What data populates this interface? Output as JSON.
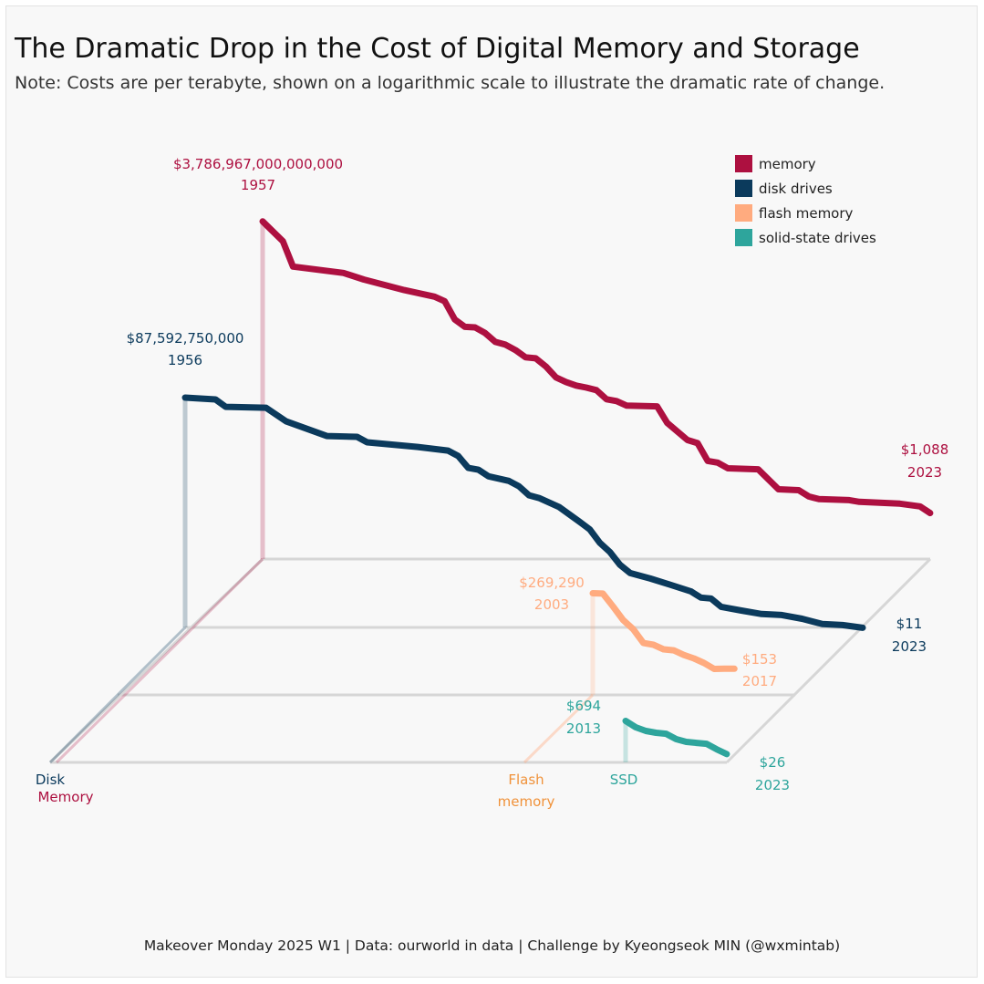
{
  "title": "The Dramatic Drop in the Cost of Digital Memory and Storage",
  "subtitle": "Note: Costs are per terabyte, shown on a logarithmic scale to illustrate the dramatic rate of change.",
  "footer": "Makeover Monday 2025 W1 | Data: ourworld in data | Challenge by Kyeongseok MIN (@wxmintab)",
  "chart_data": {
    "type": "line",
    "title": "The Dramatic Drop in the Cost of Digital Memory and Storage",
    "subtitle": "Note: Costs are per terabyte, shown on a logarithmic scale to illustrate the dramatic rate of change.",
    "yscale": "log",
    "layout": "pseudo-3D stacked planes, one per series",
    "grid": false,
    "legend_position": "top-right",
    "legend": [
      "memory",
      "disk drives",
      "flash memory",
      "solid-state drives"
    ],
    "series": [
      {
        "name": "memory",
        "plane_label": [
          "",
          "Memory"
        ],
        "color": "#ad1040",
        "start_label": {
          "value": "$3,786,967,000,000,000",
          "year": "1957"
        },
        "end_label": {
          "value": "$1,088",
          "year": "2023"
        },
        "points": [
          [
            1957,
            3787000000000000.0
          ],
          [
            1959,
            530000000000000.0
          ],
          [
            1960,
            43000000000000.0
          ],
          [
            1965,
            23000000000000.0
          ],
          [
            1967,
            12000000000000.0
          ],
          [
            1971,
            4200000000000.0
          ],
          [
            1974,
            2200000000000.0
          ],
          [
            1975,
            1400000000000.0
          ],
          [
            1976,
            230000000000.0
          ],
          [
            1977,
            110000000000.0
          ],
          [
            1978,
            105000000000.0
          ],
          [
            1979,
            60000000000.0
          ],
          [
            1980,
            25000000000.0
          ],
          [
            1981,
            19000000000.0
          ],
          [
            1982,
            11000000000.0
          ],
          [
            1983,
            5400000000.0
          ],
          [
            1984,
            4900000000.0
          ],
          [
            1985,
            2200000000.0
          ],
          [
            1986,
            740000000.0
          ],
          [
            1987,
            470000000.0
          ],
          [
            1988,
            330000000.0
          ],
          [
            1989,
            270000000.0
          ],
          [
            1990,
            210000000.0
          ],
          [
            1991,
            85000000.0
          ],
          [
            1992,
            71000000.0
          ],
          [
            1993,
            45000000.0
          ],
          [
            1996,
            42000000.0
          ],
          [
            1997,
            8200000.0
          ],
          [
            1999,
            1500000.0
          ],
          [
            2000,
            1100000.0
          ],
          [
            2001,
            190000.0
          ],
          [
            2002,
            160000.0
          ],
          [
            2003,
            91000.0
          ],
          [
            2006,
            83000.0
          ],
          [
            2008,
            11500.0
          ],
          [
            2010,
            10500.0
          ],
          [
            2011,
            5600
          ],
          [
            2012,
            4300
          ],
          [
            2015,
            3900
          ],
          [
            2016,
            3300
          ],
          [
            2020,
            2750
          ],
          [
            2022,
            2100
          ],
          [
            2023,
            1088
          ]
        ]
      },
      {
        "name": "disk drives",
        "plane_label": [
          "Disk",
          ""
        ],
        "color": "#0b3a5c",
        "start_label": {
          "value": "$87,592,750,000",
          "year": "1956"
        },
        "end_label": {
          "value": "$11",
          "year": "2023"
        },
        "points": [
          [
            1956,
            87592750000.0
          ],
          [
            1959,
            73000000000.0
          ],
          [
            1960,
            35000000000.0
          ],
          [
            1964,
            32000000000.0
          ],
          [
            1966,
            8300000000.0
          ],
          [
            1970,
            1950000000.0
          ],
          [
            1973,
            1800000000.0
          ],
          [
            1974,
            1050000000.0
          ],
          [
            1979,
            660000000.0
          ],
          [
            1982,
            460000000.0
          ],
          [
            1983,
            270000000.0
          ],
          [
            1984,
            83000000.0
          ],
          [
            1985,
            69000000.0
          ],
          [
            1986,
            36000000.0
          ],
          [
            1988,
            23000000.0
          ],
          [
            1989,
            13500000.0
          ],
          [
            1990,
            5500000.0
          ],
          [
            1991,
            4200000.0
          ],
          [
            1993,
            1700000.0
          ],
          [
            1995,
            400000.0
          ],
          [
            1996,
            190000.0
          ],
          [
            1997,
            50000.0
          ],
          [
            1998,
            20000.0
          ],
          [
            1999,
            5600
          ],
          [
            2000,
            2500
          ],
          [
            2002,
            1450
          ],
          [
            2004,
            780
          ],
          [
            2006,
            410
          ],
          [
            2007,
            220
          ],
          [
            2008,
            200
          ],
          [
            2009,
            88
          ],
          [
            2011,
            61
          ],
          [
            2013,
            43
          ],
          [
            2015,
            39
          ],
          [
            2017,
            27
          ],
          [
            2019,
            16
          ],
          [
            2021,
            14.5
          ],
          [
            2023,
            11
          ]
        ]
      },
      {
        "name": "flash memory",
        "plane_label": [
          "Flash",
          "memory"
        ],
        "color": "#ffab7f",
        "start_label": {
          "value": "$269,290",
          "year": "2003"
        },
        "end_label": {
          "value": "$153",
          "year": "2017"
        },
        "points": [
          [
            2003,
            269290
          ],
          [
            2004,
            260000
          ],
          [
            2005,
            73000
          ],
          [
            2006,
            19000
          ],
          [
            2007,
            7600
          ],
          [
            2008,
            1950
          ],
          [
            2009,
            1650
          ],
          [
            2010,
            1050
          ],
          [
            2011,
            950
          ],
          [
            2012,
            600
          ],
          [
            2013,
            425
          ],
          [
            2014,
            270
          ],
          [
            2015,
            150
          ],
          [
            2016,
            153
          ],
          [
            2017,
            153
          ]
        ]
      },
      {
        "name": "solid-state drives",
        "plane_label": [
          "SSD",
          ""
        ],
        "color": "#2ea59c",
        "start_label": {
          "value": "$694",
          "year": "2013"
        },
        "end_label": {
          "value": "$26",
          "year": "2023"
        },
        "points": [
          [
            2013,
            694
          ],
          [
            2014,
            370
          ],
          [
            2015,
            257
          ],
          [
            2016,
            215
          ],
          [
            2017,
            195
          ],
          [
            2018,
            114
          ],
          [
            2019,
            87
          ],
          [
            2020,
            79
          ],
          [
            2021,
            72
          ],
          [
            2022,
            42
          ],
          [
            2023,
            26
          ]
        ]
      }
    ]
  }
}
